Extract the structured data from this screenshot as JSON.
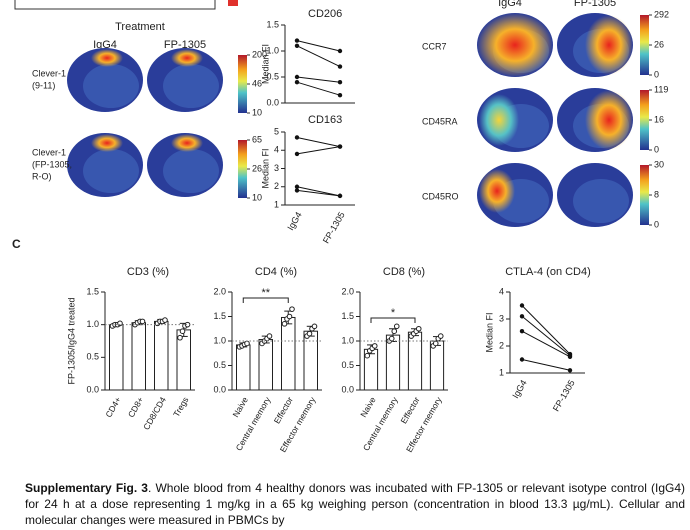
{
  "tsne_left": {
    "title": "Treatment",
    "columns": [
      "IgG4",
      "FP-1305"
    ],
    "rows": [
      {
        "label_lines": [
          "Clever-1",
          "(9-11)"
        ],
        "colorbar_ticks": [
          200,
          46,
          10
        ]
      },
      {
        "label_lines": [
          "Clever-1",
          "(FP-1305,",
          "R-O)"
        ],
        "colorbar_ticks": [
          65,
          26,
          10
        ]
      }
    ]
  },
  "tsne_right": {
    "columns": [
      "IgG4",
      "FP-1305"
    ],
    "rows": [
      {
        "label": "CCR7",
        "colorbar_ticks": [
          292,
          26,
          0
        ]
      },
      {
        "label": "CD45RA",
        "colorbar_ticks": [
          119,
          16,
          0
        ]
      },
      {
        "label": "CD45RO",
        "colorbar_ticks": [
          30,
          8,
          0
        ]
      }
    ]
  },
  "panel_label": "C",
  "chart_data": [
    {
      "type": "line",
      "title": "CD206",
      "ylabel": "Median FI",
      "color": "#111111",
      "series": [
        {
          "values": [
            1.2,
            1.0
          ]
        },
        {
          "values": [
            1.1,
            0.7
          ]
        },
        {
          "values": [
            0.5,
            0.4
          ]
        },
        {
          "values": [
            0.4,
            0.15
          ]
        }
      ],
      "ylim": [
        0,
        1.5
      ],
      "yticks": [
        {
          "value": 0,
          "label": "0.0"
        },
        {
          "value": 0.5,
          "label": "0.5"
        },
        {
          "value": 1,
          "label": "1.0"
        },
        {
          "value": 1.5,
          "label": "1.5"
        }
      ]
    },
    {
      "type": "line",
      "title": "CD163",
      "ylabel": "Median FI",
      "color": "#111111",
      "categories": [
        "IgG4",
        "FP-1305"
      ],
      "series": [
        {
          "values": [
            4.7,
            4.2
          ]
        },
        {
          "values": [
            3.8,
            4.2
          ]
        },
        {
          "values": [
            2.0,
            1.5
          ]
        },
        {
          "values": [
            1.8,
            1.5
          ]
        }
      ],
      "ylim": [
        1,
        5
      ],
      "yticks": [
        1,
        2,
        3,
        4,
        5
      ]
    },
    {
      "type": "bar",
      "title": "CD3 (%)",
      "ylabel": "FP-1305/IgG4 treated",
      "color": "#ffffff",
      "categories": [
        "CD4+",
        "CD8+",
        "CD8/CD4",
        "Tregs"
      ],
      "values": [
        1.0,
        1.03,
        1.05,
        0.92
      ],
      "errors": [
        0.02,
        0.03,
        0.03,
        0.1
      ],
      "points": [
        [
          0.98,
          1.0,
          1.0,
          1.02
        ],
        [
          1.0,
          1.03,
          1.05,
          1.05
        ],
        [
          1.02,
          1.05,
          1.05,
          1.07
        ],
        [
          0.8,
          0.9,
          0.98,
          1.0
        ]
      ],
      "reference_line": 1,
      "ylim": [
        0,
        1.5
      ],
      "yticks": [
        {
          "value": 0,
          "label": "0.0"
        },
        {
          "value": 0.5,
          "label": "0.5"
        },
        {
          "value": 1,
          "label": "1.0"
        },
        {
          "value": 1.5,
          "label": "1.5"
        }
      ]
    },
    {
      "type": "bar",
      "title": "CD4 (%)",
      "color": "#ffffff",
      "categories": [
        "Naive",
        "Central memory",
        "Effector",
        "Effector memory"
      ],
      "values": [
        0.92,
        1.03,
        1.48,
        1.2
      ],
      "errors": [
        0.04,
        0.07,
        0.13,
        0.1
      ],
      "points": [
        [
          0.88,
          0.9,
          0.93,
          0.95
        ],
        [
          0.95,
          1.0,
          1.05,
          1.1
        ],
        [
          1.35,
          1.45,
          1.5,
          1.65
        ],
        [
          1.1,
          1.15,
          1.25,
          1.3
        ]
      ],
      "reference_line": 1,
      "significance": [
        {
          "from": 0,
          "to": 2,
          "label": "**"
        }
      ],
      "ylim": [
        0,
        2
      ],
      "yticks": [
        {
          "value": 0,
          "label": "0.0"
        },
        {
          "value": 0.5,
          "label": "0.5"
        },
        {
          "value": 1,
          "label": "1.0"
        },
        {
          "value": 1.5,
          "label": "1.5"
        },
        {
          "value": 2,
          "label": "2.0"
        }
      ]
    },
    {
      "type": "bar",
      "title": "CD8 (%)",
      "color": "#ffffff",
      "categories": [
        "Naive",
        "Central memory",
        "Effector",
        "Effector memory"
      ],
      "values": [
        0.83,
        1.12,
        1.18,
        1.0
      ],
      "errors": [
        0.09,
        0.13,
        0.07,
        0.09
      ],
      "points": [
        [
          0.7,
          0.8,
          0.85,
          0.9
        ],
        [
          1.0,
          1.05,
          1.2,
          1.3
        ],
        [
          1.1,
          1.15,
          1.2,
          1.25
        ],
        [
          0.9,
          0.95,
          1.05,
          1.1
        ]
      ],
      "reference_line": 1,
      "significance": [
        {
          "from": 0,
          "to": 2,
          "label": "*"
        }
      ],
      "ylim": [
        0,
        2
      ],
      "yticks": [
        {
          "value": 0,
          "label": "0.0"
        },
        {
          "value": 0.5,
          "label": "0.5"
        },
        {
          "value": 1,
          "label": "1.0"
        },
        {
          "value": 1.5,
          "label": "1.5"
        },
        {
          "value": 2,
          "label": "2.0"
        }
      ]
    },
    {
      "type": "line",
      "title": "CTLA-4 (on CD4)",
      "ylabel": "Median FI",
      "color": "#111111",
      "categories": [
        "IgG4",
        "FP-1305"
      ],
      "series": [
        {
          "values": [
            3.5,
            1.7
          ]
        },
        {
          "values": [
            3.1,
            1.65
          ]
        },
        {
          "values": [
            2.55,
            1.6
          ]
        },
        {
          "values": [
            1.5,
            1.1
          ]
        }
      ],
      "ylim": [
        1,
        4
      ],
      "yticks": [
        1,
        2,
        3,
        4
      ]
    }
  ],
  "caption": {
    "bold": "Supplementary Fig. 3",
    "text": ". Whole blood from 4 healthy donors was incubated with FP-1305 or relevant isotype control (IgG4) for 24 h at a dose representing 1 mg/kg in a 65 kg weighing person (concentration in blood 13.3 µg/mL). Cellular and molecular changes were measured in PBMCs by"
  }
}
